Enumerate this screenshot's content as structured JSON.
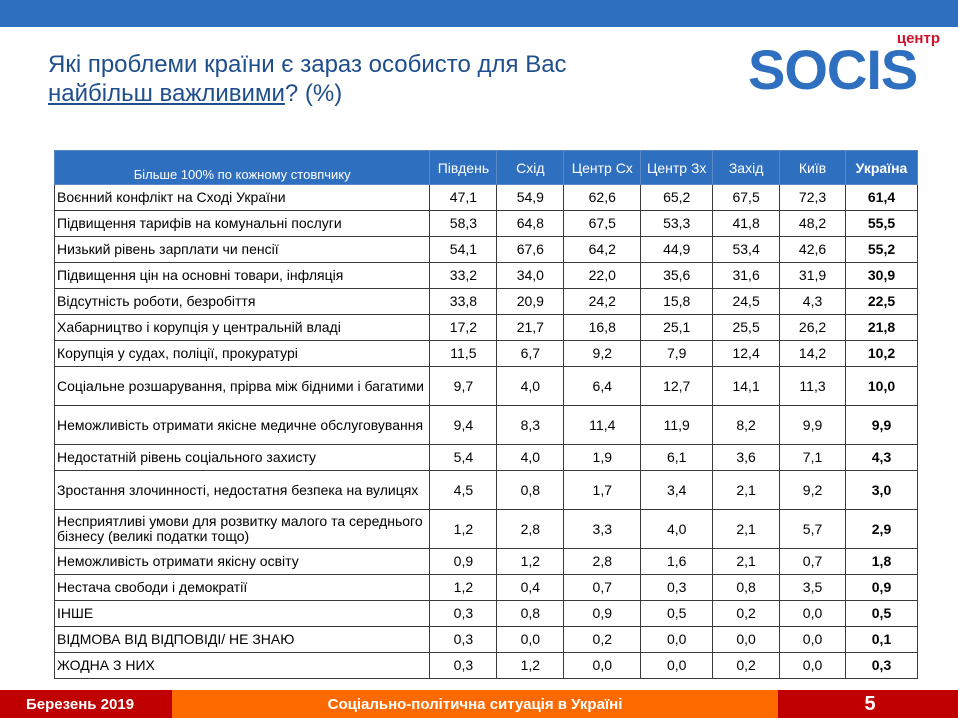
{
  "title": {
    "line1": "Які проблеми країни є зараз особисто для Вас",
    "line2_underlined": "найбільш важливими",
    "line2_rest": "? (%)"
  },
  "logo": {
    "small": "центр",
    "word": "SOCIS"
  },
  "table": {
    "columns": [
      "Більше 100% по кожному стовпчику",
      "Південь",
      "Схід",
      "Центр Сх",
      "Центр Зх",
      "Захід",
      "Київ",
      "Україна"
    ],
    "rows": [
      {
        "label": "Воєнний конфлікт на Сході України",
        "values": [
          "47,1",
          "54,9",
          "62,6",
          "65,2",
          "67,5",
          "72,3",
          "61,4"
        ]
      },
      {
        "label": "Підвищення тарифів на комунальні послуги",
        "values": [
          "58,3",
          "64,8",
          "67,5",
          "53,3",
          "41,8",
          "48,2",
          "55,5"
        ]
      },
      {
        "label": "Низький рівень зарплати чи пенсії",
        "values": [
          "54,1",
          "67,6",
          "64,2",
          "44,9",
          "53,4",
          "42,6",
          "55,2"
        ]
      },
      {
        "label": "Підвищення цін на основні товари, інфляція",
        "values": [
          "33,2",
          "34,0",
          "22,0",
          "35,6",
          "31,6",
          "31,9",
          "30,9"
        ]
      },
      {
        "label": "Відсутність роботи, безробіття",
        "values": [
          "33,8",
          "20,9",
          "24,2",
          "15,8",
          "24,5",
          "4,3",
          "22,5"
        ]
      },
      {
        "label": "Хабарництво і корупція у центральній владі",
        "values": [
          "17,2",
          "21,7",
          "16,8",
          "25,1",
          "25,5",
          "26,2",
          "21,8"
        ]
      },
      {
        "label": "Корупція у судах, поліції, прокуратурі",
        "values": [
          "11,5",
          "6,7",
          "9,2",
          "7,9",
          "12,4",
          "14,2",
          "10,2"
        ]
      },
      {
        "label": "Соціальне розшарування, прірва між бідними і багатими",
        "values": [
          "9,7",
          "4,0",
          "6,4",
          "12,7",
          "14,1",
          "11,3",
          "10,0"
        ]
      },
      {
        "label": "Неможливість отримати якісне медичне обслуговування",
        "values": [
          "9,4",
          "8,3",
          "11,4",
          "11,9",
          "8,2",
          "9,9",
          "9,9"
        ]
      },
      {
        "label": "Недостатній рівень соціального захисту",
        "values": [
          "5,4",
          "4,0",
          "1,9",
          "6,1",
          "3,6",
          "7,1",
          "4,3"
        ]
      },
      {
        "label": "Зростання злочинності, недостатня безпека на вулицях",
        "values": [
          "4,5",
          "0,8",
          "1,7",
          "3,4",
          "2,1",
          "9,2",
          "3,0"
        ]
      },
      {
        "label": "Несприятливі умови для розвитку малого та середнього бізнесу (великі податки тощо)",
        "values": [
          "1,2",
          "2,8",
          "3,3",
          "4,0",
          "2,1",
          "5,7",
          "2,9"
        ]
      },
      {
        "label": "Неможливість отримати якісну освіту",
        "values": [
          "0,9",
          "1,2",
          "2,8",
          "1,6",
          "2,1",
          "0,7",
          "1,8"
        ]
      },
      {
        "label": "Нестача свободи і демократії",
        "values": [
          "1,2",
          "0,4",
          "0,7",
          "0,3",
          "0,8",
          "3,5",
          "0,9"
        ]
      },
      {
        "label": "ІНШЕ",
        "values": [
          "0,3",
          "0,8",
          "0,9",
          "0,5",
          "0,2",
          "0,0",
          "0,5"
        ]
      },
      {
        "label": "ВІДМОВА ВІД ВІДПОВІДІ/ НЕ ЗНАЮ",
        "values": [
          "0,3",
          "0,0",
          "0,2",
          "0,0",
          "0,0",
          "0,0",
          "0,1"
        ]
      },
      {
        "label": "ЖОДНА З НИХ",
        "values": [
          "0,3",
          "1,2",
          "0,0",
          "0,0",
          "0,2",
          "0,0",
          "0,3"
        ]
      }
    ]
  },
  "footer": {
    "date": "Березень 2019",
    "topic": "Соціально-політична ситуація в Україні",
    "page": "5"
  },
  "colors": {
    "blue": "#2f6fc0",
    "red": "#c00000",
    "orange": "#ff6a00"
  }
}
